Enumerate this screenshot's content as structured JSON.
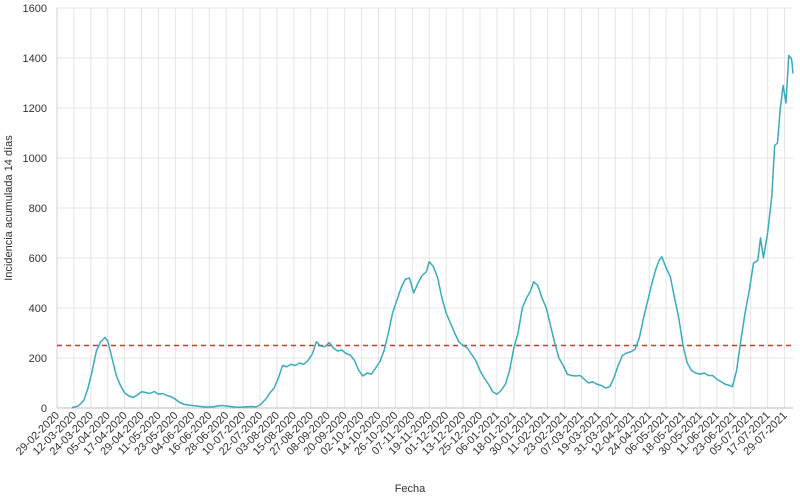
{
  "chart_data": {
    "type": "line",
    "xlabel": "Fecha",
    "ylabel": "Incidencia acumulada 14 días",
    "ylim": [
      0,
      1600
    ],
    "yticks": [
      0,
      200,
      400,
      600,
      800,
      1000,
      1200,
      1400,
      1600
    ],
    "xlim": [
      "29-02-2020",
      "04-08-2021"
    ],
    "x_tick_labels": [
      "29-02-2020",
      "12-03-2020",
      "24-03-2020",
      "05-04-2020",
      "17-04-2020",
      "29-04-2020",
      "11-05-2020",
      "23-05-2020",
      "04-06-2020",
      "16-06-2020",
      "28-06-2020",
      "10-07-2020",
      "22-07-2020",
      "03-08-2020",
      "15-08-2020",
      "27-08-2020",
      "08-09-2020",
      "20-09-2020",
      "02-10-2020",
      "14-10-2020",
      "26-10-2020",
      "07-11-2020",
      "19-11-2020",
      "01-12-2020",
      "13-12-2020",
      "25-12-2020",
      "06-01-2021",
      "18-01-2021",
      "30-01-2021",
      "11-02-2021",
      "23-02-2021",
      "07-03-2021",
      "19-03-2021",
      "31-03-2021",
      "12-04-2021",
      "24-04-2021",
      "06-05-2021",
      "18-05-2021",
      "30-05-2021",
      "11-06-2021",
      "23-06-2021",
      "05-07-2021",
      "17-07-2021",
      "29-07-2021"
    ],
    "grid": true,
    "reference_line": {
      "y": 250,
      "color": "#e0312d",
      "style": "dashed"
    },
    "series": [
      {
        "color": "#3aabbd",
        "points": [
          [
            "11-03-2020",
            2
          ],
          [
            "15-03-2020",
            8
          ],
          [
            "19-03-2020",
            30
          ],
          [
            "22-03-2020",
            80
          ],
          [
            "25-03-2020",
            150
          ],
          [
            "28-03-2020",
            230
          ],
          [
            "31-03-2020",
            265
          ],
          [
            "03-04-2020",
            282
          ],
          [
            "05-04-2020",
            268
          ],
          [
            "08-04-2020",
            200
          ],
          [
            "11-04-2020",
            130
          ],
          [
            "14-04-2020",
            90
          ],
          [
            "17-04-2020",
            60
          ],
          [
            "20-04-2020",
            48
          ],
          [
            "23-04-2020",
            42
          ],
          [
            "26-04-2020",
            52
          ],
          [
            "29-04-2020",
            65
          ],
          [
            "02-05-2020",
            62
          ],
          [
            "05-05-2020",
            58
          ],
          [
            "08-05-2020",
            66
          ],
          [
            "11-05-2020",
            55
          ],
          [
            "14-05-2020",
            58
          ],
          [
            "17-05-2020",
            50
          ],
          [
            "20-05-2020",
            45
          ],
          [
            "23-05-2020",
            35
          ],
          [
            "26-05-2020",
            22
          ],
          [
            "29-05-2020",
            15
          ],
          [
            "01-06-2020",
            12
          ],
          [
            "04-06-2020",
            10
          ],
          [
            "07-06-2020",
            8
          ],
          [
            "10-06-2020",
            6
          ],
          [
            "13-06-2020",
            4
          ],
          [
            "16-06-2020",
            4
          ],
          [
            "19-06-2020",
            5
          ],
          [
            "22-06-2020",
            8
          ],
          [
            "25-06-2020",
            10
          ],
          [
            "28-06-2020",
            8
          ],
          [
            "01-07-2020",
            6
          ],
          [
            "04-07-2020",
            4
          ],
          [
            "07-07-2020",
            3
          ],
          [
            "10-07-2020",
            4
          ],
          [
            "13-07-2020",
            5
          ],
          [
            "16-07-2020",
            6
          ],
          [
            "19-07-2020",
            4
          ],
          [
            "22-07-2020",
            12
          ],
          [
            "26-07-2020",
            35
          ],
          [
            "29-07-2020",
            60
          ],
          [
            "01-08-2020",
            80
          ],
          [
            "04-08-2020",
            120
          ],
          [
            "07-08-2020",
            170
          ],
          [
            "10-08-2020",
            165
          ],
          [
            "13-08-2020",
            175
          ],
          [
            "16-08-2020",
            170
          ],
          [
            "19-08-2020",
            180
          ],
          [
            "22-08-2020",
            175
          ],
          [
            "25-08-2020",
            190
          ],
          [
            "28-08-2020",
            215
          ],
          [
            "31-08-2020",
            265
          ],
          [
            "03-09-2020",
            248
          ],
          [
            "06-09-2020",
            245
          ],
          [
            "09-09-2020",
            262
          ],
          [
            "12-09-2020",
            240
          ],
          [
            "15-09-2020",
            228
          ],
          [
            "18-09-2020",
            232
          ],
          [
            "21-09-2020",
            218
          ],
          [
            "24-09-2020",
            212
          ],
          [
            "27-09-2020",
            190
          ],
          [
            "30-09-2020",
            150
          ],
          [
            "03-10-2020",
            128
          ],
          [
            "06-10-2020",
            140
          ],
          [
            "09-10-2020",
            135
          ],
          [
            "12-10-2020",
            160
          ],
          [
            "15-10-2020",
            185
          ],
          [
            "18-10-2020",
            230
          ],
          [
            "21-10-2020",
            300
          ],
          [
            "24-10-2020",
            380
          ],
          [
            "27-10-2020",
            430
          ],
          [
            "30-10-2020",
            480
          ],
          [
            "02-11-2020",
            515
          ],
          [
            "05-11-2020",
            520
          ],
          [
            "08-11-2020",
            460
          ],
          [
            "11-11-2020",
            500
          ],
          [
            "14-11-2020",
            530
          ],
          [
            "17-11-2020",
            545
          ],
          [
            "19-11-2020",
            585
          ],
          [
            "22-11-2020",
            565
          ],
          [
            "25-11-2020",
            520
          ],
          [
            "28-11-2020",
            440
          ],
          [
            "01-12-2020",
            380
          ],
          [
            "04-12-2020",
            340
          ],
          [
            "07-12-2020",
            300
          ],
          [
            "10-12-2020",
            265
          ],
          [
            "13-12-2020",
            250
          ],
          [
            "16-12-2020",
            240
          ],
          [
            "19-12-2020",
            215
          ],
          [
            "22-12-2020",
            190
          ],
          [
            "25-12-2020",
            150
          ],
          [
            "28-12-2020",
            120
          ],
          [
            "31-12-2020",
            95
          ],
          [
            "03-01-2021",
            65
          ],
          [
            "06-01-2021",
            55
          ],
          [
            "09-01-2021",
            70
          ],
          [
            "12-01-2021",
            95
          ],
          [
            "15-01-2021",
            150
          ],
          [
            "18-01-2021",
            240
          ],
          [
            "21-01-2021",
            300
          ],
          [
            "24-01-2021",
            400
          ],
          [
            "27-01-2021",
            440
          ],
          [
            "30-01-2021",
            470
          ],
          [
            "01-02-2021",
            505
          ],
          [
            "04-02-2021",
            490
          ],
          [
            "07-02-2021",
            440
          ],
          [
            "10-02-2021",
            400
          ],
          [
            "13-02-2021",
            330
          ],
          [
            "16-02-2021",
            260
          ],
          [
            "19-02-2021",
            200
          ],
          [
            "22-02-2021",
            170
          ],
          [
            "25-02-2021",
            135
          ],
          [
            "28-02-2021",
            130
          ],
          [
            "03-03-2021",
            128
          ],
          [
            "06-03-2021",
            130
          ],
          [
            "09-03-2021",
            115
          ],
          [
            "12-03-2021",
            100
          ],
          [
            "15-03-2021",
            105
          ],
          [
            "18-03-2021",
            95
          ],
          [
            "21-03-2021",
            90
          ],
          [
            "24-03-2021",
            80
          ],
          [
            "27-03-2021",
            85
          ],
          [
            "30-03-2021",
            120
          ],
          [
            "02-04-2021",
            170
          ],
          [
            "05-04-2021",
            210
          ],
          [
            "08-04-2021",
            220
          ],
          [
            "11-04-2021",
            225
          ],
          [
            "14-04-2021",
            235
          ],
          [
            "17-04-2021",
            280
          ],
          [
            "20-04-2021",
            360
          ],
          [
            "23-04-2021",
            430
          ],
          [
            "26-04-2021",
            500
          ],
          [
            "29-04-2021",
            560
          ],
          [
            "01-05-2021",
            590
          ],
          [
            "03-05-2021",
            605
          ],
          [
            "06-05-2021",
            560
          ],
          [
            "09-05-2021",
            525
          ],
          [
            "12-05-2021",
            440
          ],
          [
            "15-05-2021",
            360
          ],
          [
            "18-05-2021",
            250
          ],
          [
            "21-05-2021",
            180
          ],
          [
            "24-05-2021",
            150
          ],
          [
            "27-05-2021",
            140
          ],
          [
            "30-05-2021",
            135
          ],
          [
            "02-06-2021",
            140
          ],
          [
            "05-06-2021",
            130
          ],
          [
            "08-06-2021",
            130
          ],
          [
            "11-06-2021",
            115
          ],
          [
            "14-06-2021",
            105
          ],
          [
            "17-06-2021",
            95
          ],
          [
            "20-06-2021",
            90
          ],
          [
            "22-06-2021",
            85
          ],
          [
            "25-06-2021",
            150
          ],
          [
            "28-06-2021",
            270
          ],
          [
            "01-07-2021",
            380
          ],
          [
            "04-07-2021",
            470
          ],
          [
            "07-07-2021",
            580
          ],
          [
            "10-07-2021",
            590
          ],
          [
            "12-07-2021",
            680
          ],
          [
            "14-07-2021",
            600
          ],
          [
            "17-07-2021",
            700
          ],
          [
            "20-07-2021",
            850
          ],
          [
            "22-07-2021",
            1050
          ],
          [
            "24-07-2021",
            1060
          ],
          [
            "26-07-2021",
            1200
          ],
          [
            "28-07-2021",
            1290
          ],
          [
            "30-07-2021",
            1220
          ],
          [
            "01-08-2021",
            1410
          ],
          [
            "03-08-2021",
            1395
          ],
          [
            "04-08-2021",
            1340
          ]
        ]
      }
    ]
  }
}
